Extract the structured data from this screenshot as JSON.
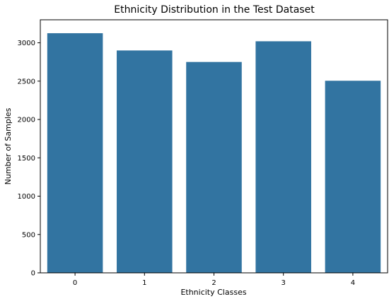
{
  "chart_data": {
    "type": "bar",
    "title": "Ethnicity Distribution in the Test Dataset",
    "xlabel": "Ethnicity Classes",
    "ylabel": "Number of Samples",
    "categories": [
      "0",
      "1",
      "2",
      "3",
      "4"
    ],
    "values": [
      3125,
      2900,
      2750,
      3020,
      2505
    ],
    "ylim": [
      0,
      3300
    ],
    "yticks": [
      0,
      500,
      1000,
      1500,
      2000,
      2500,
      3000
    ],
    "grid": false,
    "legend": "none",
    "bar_color": "#3274a1"
  }
}
